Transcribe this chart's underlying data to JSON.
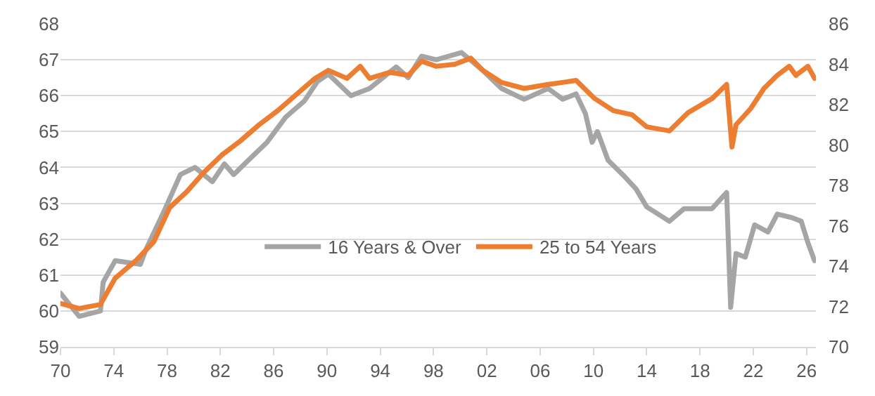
{
  "chart_data": {
    "type": "line",
    "legend": "bottom",
    "grid": "y",
    "marker": "none",
    "line_style": "solid",
    "xlim": [
      1970,
      2026.7
    ],
    "xticks": [
      {
        "value": 1970,
        "label": "70"
      },
      {
        "value": 1974,
        "label": "74"
      },
      {
        "value": 1978,
        "label": "78"
      },
      {
        "value": 1982,
        "label": "82"
      },
      {
        "value": 1986,
        "label": "86"
      },
      {
        "value": 1990,
        "label": "90"
      },
      {
        "value": 1994,
        "label": "94"
      },
      {
        "value": 1998,
        "label": "98"
      },
      {
        "value": 2002,
        "label": "02"
      },
      {
        "value": 2006,
        "label": "06"
      },
      {
        "value": 2010,
        "label": "10"
      },
      {
        "value": 2014,
        "label": "14"
      },
      {
        "value": 2018,
        "label": "18"
      },
      {
        "value": 2022,
        "label": "22"
      },
      {
        "value": 2026,
        "label": "26"
      }
    ],
    "ylim": [
      59,
      68
    ],
    "yticks": [
      59,
      60,
      61,
      62,
      63,
      64,
      65,
      66,
      67,
      68
    ],
    "y2lim": [
      70,
      86
    ],
    "y2ticks": [
      70,
      72,
      74,
      76,
      78,
      80,
      82,
      84,
      86
    ],
    "series": [
      {
        "name": "16 Years & Over",
        "color": "#a5a5a5",
        "x": [
          1970.0,
          1971.4,
          1973.0,
          1973.2,
          1974.1,
          1976.0,
          1976.4,
          1977.8,
          1979.0,
          1980.1,
          1981.4,
          1982.3,
          1983.0,
          1984.1,
          1985.5,
          1986.9,
          1988.3,
          1989.3,
          1990.1,
          1991.8,
          1993.2,
          1995.2,
          1996.1,
          1997.1,
          1998.2,
          2000.1,
          2001.7,
          2003.1,
          2004.8,
          2006.6,
          2007.7,
          2008.7,
          2009.4,
          2009.9,
          2010.3,
          2011.1,
          2012.2,
          2013.2,
          2014.0,
          2015.7,
          2016.8,
          2018.9,
          2020.0,
          2020.3,
          2020.7,
          2021.4,
          2022.1,
          2023.1,
          2023.8,
          2024.9,
          2025.6,
          2026.1,
          2026.6
        ],
        "values": [
          60.5,
          59.85,
          60.0,
          60.8,
          61.4,
          61.3,
          61.7,
          62.8,
          63.8,
          64.0,
          63.6,
          64.1,
          63.8,
          64.2,
          64.7,
          65.4,
          65.85,
          66.4,
          66.6,
          66.0,
          66.2,
          66.8,
          66.5,
          67.1,
          67.0,
          67.2,
          66.7,
          66.2,
          65.9,
          66.2,
          65.9,
          66.05,
          65.5,
          64.7,
          65.0,
          64.2,
          63.8,
          63.4,
          62.9,
          62.5,
          62.85,
          62.85,
          63.3,
          60.1,
          61.6,
          61.5,
          62.4,
          62.2,
          62.7,
          62.6,
          62.5,
          61.9,
          61.4
        ]
      },
      {
        "name": "25 to 54 Years",
        "color": "#ed7d31",
        "axis": "y2",
        "x": [
          1970.0,
          1971.4,
          1973.0,
          1974.1,
          1975.7,
          1977.0,
          1978.2,
          1979.5,
          1980.7,
          1982.1,
          1983.5,
          1984.9,
          1986.3,
          1987.7,
          1989.1,
          1990.1,
          1991.5,
          1992.5,
          1993.2,
          1994.7,
          1996.1,
          1997.1,
          1998.2,
          1999.6,
          2000.8,
          2001.7,
          2003.1,
          2004.8,
          2006.6,
          2007.7,
          2008.7,
          2010.1,
          2011.5,
          2012.9,
          2014.0,
          2015.7,
          2017.1,
          2018.9,
          2020.0,
          2020.4,
          2020.7,
          2021.8,
          2022.8,
          2023.8,
          2024.7,
          2025.2,
          2026.1,
          2026.6
        ],
        "values": [
          72.15,
          71.9,
          72.1,
          73.4,
          74.3,
          75.2,
          76.9,
          77.7,
          78.6,
          79.5,
          80.2,
          81.0,
          81.7,
          82.5,
          83.3,
          83.7,
          83.3,
          83.9,
          83.3,
          83.6,
          83.45,
          84.15,
          83.9,
          84.0,
          84.3,
          83.7,
          83.1,
          82.8,
          83.0,
          83.1,
          83.2,
          82.3,
          81.7,
          81.5,
          80.9,
          80.7,
          81.6,
          82.3,
          83.0,
          79.9,
          81.0,
          81.8,
          82.8,
          83.45,
          83.9,
          83.45,
          83.9,
          83.3
        ]
      }
    ]
  }
}
